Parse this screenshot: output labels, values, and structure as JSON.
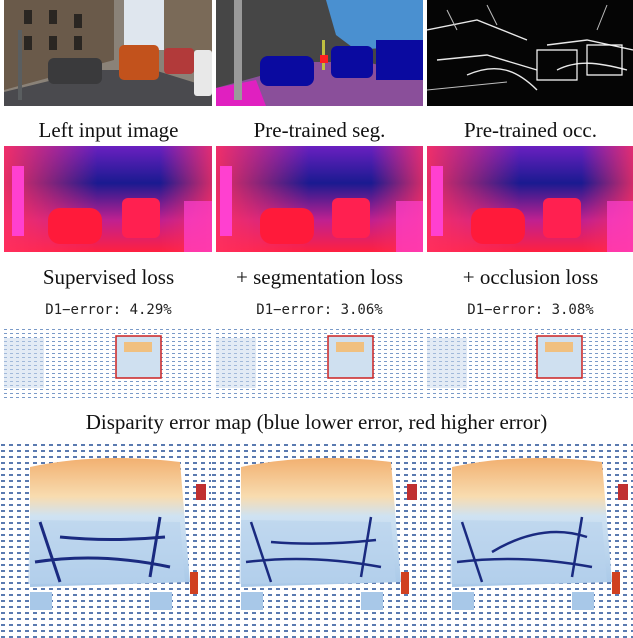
{
  "row1_captions": [
    "Left input image",
    "Pre-trained seg.",
    "Pre-trained occ."
  ],
  "row2_captions": [
    "Supervised loss",
    "+ segmentation loss",
    "+ occlusion loss"
  ],
  "errors": [
    {
      "label": "D1−error:",
      "value": "4.29%"
    },
    {
      "label": "D1−error:",
      "value": "3.06%"
    },
    {
      "label": "D1−error:",
      "value": "3.08%"
    }
  ],
  "error_map_caption": "Disparity error map (blue lower error, red higher error)",
  "colors": {
    "seg_sky": "#4a90d0",
    "seg_road": "#8a4f9a",
    "seg_car": "#0a0aa0",
    "seg_sidewalk": "#e020c0",
    "disp_far": "#1a1a90",
    "disp_near": "#ff2040",
    "err_low": "#1a2a80",
    "err_high": "#e05030",
    "highlight_box": "#cc2222"
  }
}
